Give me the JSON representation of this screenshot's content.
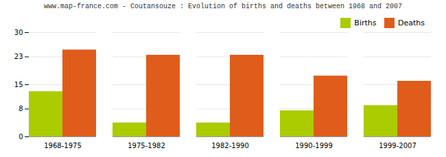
{
  "chart_data": {
    "type": "bar",
    "title": "www.map-france.com - Coutansouze : Evolution of births and deaths between 1968 and 2007",
    "categories": [
      "1968-1975",
      "1975-1982",
      "1982-1990",
      "1990-1999",
      "1999-2007"
    ],
    "series": [
      {
        "name": "Births",
        "color": "#aacc00",
        "values": [
          13,
          4,
          4,
          7.5,
          9
        ]
      },
      {
        "name": "Deaths",
        "color": "#e05c1a",
        "values": [
          25,
          23.5,
          23.5,
          17.5,
          16
        ]
      }
    ],
    "ylim": [
      0,
      30
    ],
    "yticks": [
      0,
      8,
      15,
      23,
      30
    ],
    "grid": true,
    "legend": "upper right"
  }
}
